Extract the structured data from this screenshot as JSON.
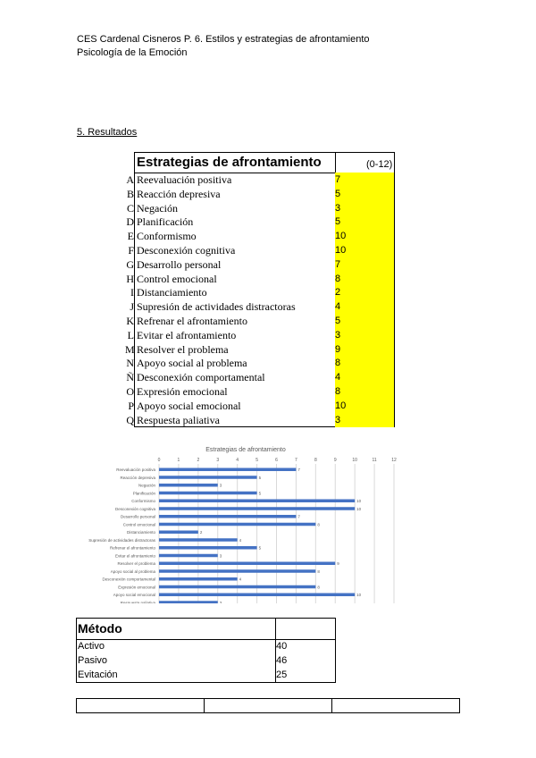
{
  "header": {
    "line1": "CES Cardenal Cisneros P. 6.  Estilos y estrategias de afrontamiento",
    "line2": "Psicología de la Emoción"
  },
  "section_title": "5. Resultados",
  "strategies_table": {
    "title": "Estrategias de afrontamiento",
    "range": "(0-12)",
    "highlight_color": "#ffff00",
    "rows": [
      {
        "letter": "A",
        "name": "Reevaluación positiva",
        "value": "7"
      },
      {
        "letter": "B",
        "name": "Reacción depresiva",
        "value": "5"
      },
      {
        "letter": "C",
        "name": "Negación",
        "value": "3"
      },
      {
        "letter": "D",
        "name": "Planificación",
        "value": "5"
      },
      {
        "letter": "E",
        "name": "Conformismo",
        "value": "10"
      },
      {
        "letter": "F",
        "name": "Desconexión cognitiva",
        "value": "10"
      },
      {
        "letter": "G",
        "name": "Desarrollo personal",
        "value": "7"
      },
      {
        "letter": "H",
        "name": "Control emocional",
        "value": "8"
      },
      {
        "letter": "I",
        "name": "Distanciamiento",
        "value": "2"
      },
      {
        "letter": "J",
        "name": "Supresión de actividades distractoras",
        "value": "4"
      },
      {
        "letter": "K",
        "name": "Refrenar el afrontamiento",
        "value": "5"
      },
      {
        "letter": "L",
        "name": "Evitar el afrontamiento",
        "value": "3"
      },
      {
        "letter": "M",
        "name": "Resolver el problema",
        "value": "9"
      },
      {
        "letter": "N",
        "name": "Apoyo social al problema",
        "value": "8"
      },
      {
        "letter": "Ñ",
        "name": "Desconexión comportamental",
        "value": "4"
      },
      {
        "letter": "O",
        "name": "Expresión emocional",
        "value": "8"
      },
      {
        "letter": "P",
        "name": "Apoyo social emocional",
        "value": "10"
      },
      {
        "letter": "Q",
        "name": "Respuesta paliativa",
        "value": "3"
      }
    ]
  },
  "chart_data": {
    "type": "bar",
    "orientation": "horizontal",
    "title": "Estrategias de afrontamiento",
    "categories": [
      "Reevaluación positiva",
      "Reacción depresiva",
      "Negación",
      "Planificación",
      "Conformismo",
      "Desconexión cognitiva",
      "Desarrollo personal",
      "Control emocional",
      "Distanciamiento",
      "Supresión de actividades distractoras",
      "Refrenar el afrontamiento",
      "Evitar el afrontamiento",
      "Resolver el problema",
      "Apoyo social al problema",
      "Desconexión comportamental",
      "Expresión emocional",
      "Apoyo social emocional",
      "Respuesta paliativa"
    ],
    "values": [
      7,
      5,
      3,
      5,
      10,
      10,
      7,
      8,
      2,
      4,
      5,
      3,
      9,
      8,
      4,
      8,
      10,
      3
    ],
    "xlim": [
      0,
      12
    ],
    "ticks": [
      "0",
      "1",
      "2",
      "3",
      "4",
      "5",
      "6",
      "7",
      "8",
      "9",
      "10",
      "11",
      "12"
    ],
    "grid": true,
    "bar_color": "#4472c4"
  },
  "method_table": {
    "title": "Método",
    "rows": [
      {
        "label": "Activo",
        "value": "40"
      },
      {
        "label": "Pasivo",
        "value": "46"
      },
      {
        "label": "Evitación",
        "value": "25"
      }
    ]
  }
}
